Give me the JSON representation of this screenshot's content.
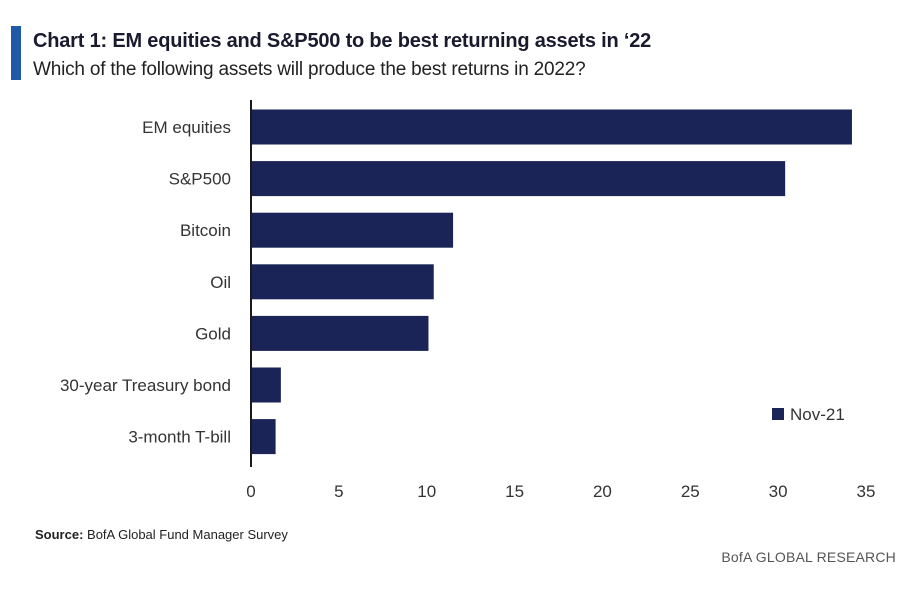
{
  "header": {
    "title": "Chart 1:  EM equities and S&P500 to be best returning assets in ‘22",
    "subtitle": "Which of the following assets will produce the best returns in 2022?"
  },
  "footer": {
    "source_label": "Source:",
    "source_text": " BofA Global Fund Manager Survey",
    "brand": "BofA GLOBAL RESEARCH"
  },
  "colors": {
    "bar": "#1a2456",
    "accent": "#1e5aa8"
  },
  "chart_data": {
    "type": "bar",
    "orientation": "horizontal",
    "categories": [
      "EM equities",
      "S&P500",
      "Bitcoin",
      "Oil",
      "Gold",
      "30-year Treasury bond",
      "3-month T-bill"
    ],
    "series": [
      {
        "name": "Nov-21",
        "values": [
          34.2,
          30.4,
          11.5,
          10.4,
          10.1,
          1.7,
          1.4
        ]
      }
    ],
    "xlim": [
      0,
      35
    ],
    "xticks": [
      0,
      5,
      10,
      15,
      20,
      25,
      30,
      35
    ],
    "title": "Chart 1:  EM equities and S&P500 to be best returning assets in ‘22",
    "subtitle": "Which of the following assets will produce the best returns in 2022?",
    "xlabel": "",
    "ylabel": "",
    "grid": false,
    "legend_position": "bottom-right"
  }
}
